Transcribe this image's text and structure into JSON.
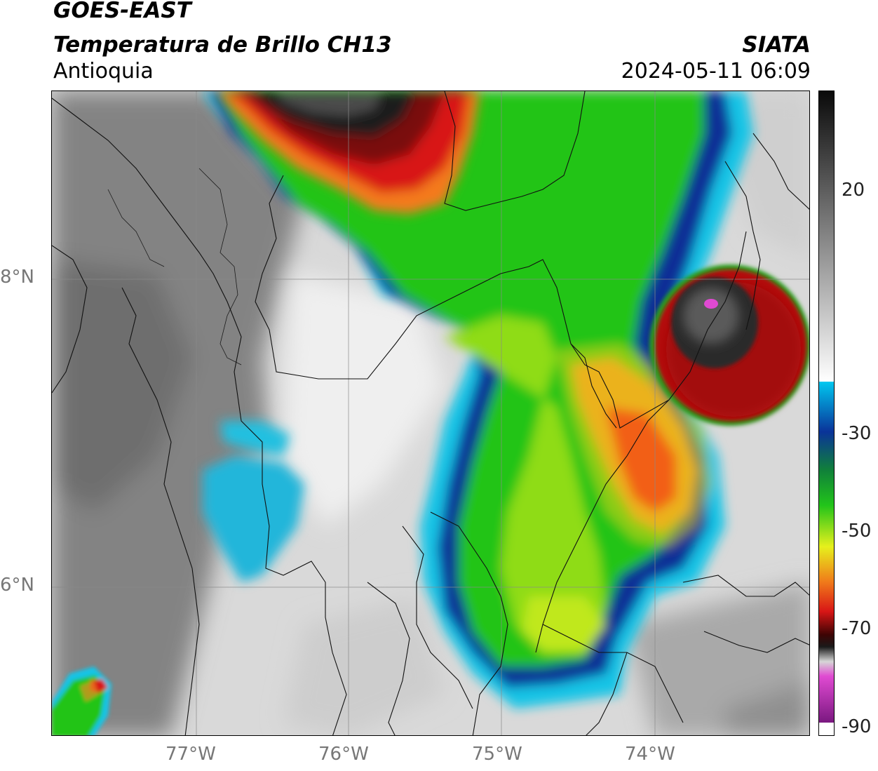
{
  "header": {
    "satellite": "GOES-EAST",
    "product": "Temperatura de Brillo CH13",
    "region": "Antioquia",
    "organization": "SIATA",
    "timestamp": "2024-05-11 06:09"
  },
  "map": {
    "lat_labels": [
      "8°N",
      "6°N"
    ],
    "lon_labels": [
      "77°W",
      "76°W",
      "75°W",
      "74°W"
    ],
    "extent": {
      "lon": [
        -77.93,
        -72.99
      ],
      "lat": [
        5.12,
        9.22
      ]
    }
  },
  "colorbar": {
    "ticks": [
      "20",
      "-30",
      "-50",
      "-70",
      "-90"
    ],
    "tick_values": [
      20,
      -30,
      -50,
      -70,
      -90
    ],
    "range": [
      -92,
      42
    ]
  },
  "colors": {
    "warm_gray": "#7a7a7a",
    "cyan": "#14c4e6",
    "blue": "#0a3399",
    "green": "#22c41a",
    "yellow": "#e6f01c",
    "orange": "#f07a1a",
    "red": "#c41010",
    "dark_red": "#6a0505",
    "black": "#141414",
    "magenta": "#e04ad2"
  }
}
